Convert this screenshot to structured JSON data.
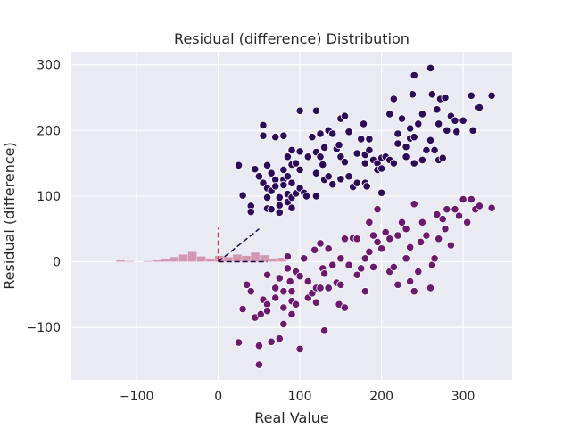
{
  "chart_data": {
    "type": "scatter",
    "title": "Residual (difference) Distribution",
    "xlabel": "Real Value",
    "ylabel": "Residual (difference)",
    "xlim": [
      -180,
      360
    ],
    "ylim": [
      -180,
      320
    ],
    "xticks": [
      -100,
      0,
      100,
      200,
      300
    ],
    "yticks": [
      -100,
      0,
      100,
      200,
      300
    ],
    "grid": true,
    "colors": {
      "background": "#eaeaf2",
      "grid": "#ffffff",
      "upper_points": "#2d0b59",
      "lower_points": "#6b1a6e",
      "histogram": "#c97c9c",
      "vline": "#c23a3a",
      "dashed_line": "#1f0a45"
    },
    "series": [
      {
        "points": [
          [
            25,
            147
          ],
          [
            30,
            101
          ],
          [
            40,
            85
          ],
          [
            40,
            76
          ],
          [
            45,
            141
          ],
          [
            50,
            130
          ],
          [
            55,
            120
          ],
          [
            55,
            208
          ],
          [
            55,
            192
          ],
          [
            60,
            147
          ],
          [
            60,
            112
          ],
          [
            60,
            98
          ],
          [
            60,
            81
          ],
          [
            65,
            135
          ],
          [
            65,
            108
          ],
          [
            65,
            80
          ],
          [
            70,
            190
          ],
          [
            70,
            125
          ],
          [
            70,
            115
          ],
          [
            75,
            98
          ],
          [
            75,
            86
          ],
          [
            75,
            75
          ],
          [
            80,
            192
          ],
          [
            80,
            140
          ],
          [
            80,
            125
          ],
          [
            80,
            117
          ],
          [
            85,
            160
          ],
          [
            85,
            130
          ],
          [
            85,
            103
          ],
          [
            85,
            91
          ],
          [
            90,
            170
          ],
          [
            90,
            148
          ],
          [
            90,
            120
          ],
          [
            90,
            98
          ],
          [
            90,
            82
          ],
          [
            95,
            150
          ],
          [
            95,
            104
          ],
          [
            100,
            230
          ],
          [
            100,
            168
          ],
          [
            100,
            140
          ],
          [
            100,
            112
          ],
          [
            105,
            105
          ],
          [
            108,
            100
          ],
          [
            110,
            160
          ],
          [
            115,
            190
          ],
          [
            120,
            230
          ],
          [
            120,
            167
          ],
          [
            120,
            135
          ],
          [
            120,
            100
          ],
          [
            125,
            195
          ],
          [
            125,
            160
          ],
          [
            128,
            148
          ],
          [
            130,
            174
          ],
          [
            130,
            125
          ],
          [
            135,
            130
          ],
          [
            135,
            200
          ],
          [
            140,
            195
          ],
          [
            140,
            118
          ],
          [
            145,
            172
          ],
          [
            148,
            178
          ],
          [
            150,
            218
          ],
          [
            150,
            160
          ],
          [
            150,
            126
          ],
          [
            155,
            222
          ],
          [
            155,
            152
          ],
          [
            160,
            198
          ],
          [
            160,
            130
          ],
          [
            165,
            114
          ],
          [
            170,
            120
          ],
          [
            170,
            165
          ],
          [
            175,
            187
          ],
          [
            178,
            210
          ],
          [
            180,
            163
          ],
          [
            180,
            150
          ],
          [
            180,
            120
          ],
          [
            182,
            115
          ],
          [
            185,
            187
          ],
          [
            185,
            170
          ],
          [
            190,
            155
          ],
          [
            195,
            150
          ],
          [
            195,
            140
          ],
          [
            200,
            158
          ],
          [
            200,
            142
          ],
          [
            200,
            105
          ],
          [
            205,
            160
          ],
          [
            210,
            225
          ],
          [
            210,
            155
          ],
          [
            215,
            150
          ],
          [
            215,
            248
          ],
          [
            220,
            180
          ],
          [
            220,
            195
          ],
          [
            225,
            218
          ],
          [
            230,
            175
          ],
          [
            230,
            160
          ],
          [
            235,
            188
          ],
          [
            235,
            203
          ],
          [
            238,
            255
          ],
          [
            240,
            284
          ],
          [
            240,
            190
          ],
          [
            240,
            150
          ],
          [
            245,
            210
          ],
          [
            250,
            225
          ],
          [
            250,
            155
          ],
          [
            255,
            170
          ],
          [
            260,
            295
          ],
          [
            260,
            185
          ],
          [
            262,
            255
          ],
          [
            265,
            170
          ],
          [
            268,
            232
          ],
          [
            270,
            210
          ],
          [
            270,
            155
          ],
          [
            272,
            248
          ],
          [
            275,
            158
          ],
          [
            278,
            250
          ],
          [
            280,
            200
          ],
          [
            285,
            222
          ],
          [
            290,
            215
          ],
          [
            292,
            198
          ],
          [
            300,
            215
          ],
          [
            310,
            253
          ],
          [
            312,
            200
          ],
          [
            318,
            235
          ],
          [
            320,
            235
          ],
          [
            335,
            253
          ]
        ]
      },
      {
        "points": [
          [
            25,
            -123
          ],
          [
            30,
            -72
          ],
          [
            35,
            -35
          ],
          [
            40,
            -45
          ],
          [
            45,
            -85
          ],
          [
            50,
            -128
          ],
          [
            50,
            -157
          ],
          [
            52,
            -80
          ],
          [
            55,
            -58
          ],
          [
            60,
            -65
          ],
          [
            60,
            -75
          ],
          [
            60,
            -20
          ],
          [
            65,
            -122
          ],
          [
            70,
            -55
          ],
          [
            70,
            -40
          ],
          [
            75,
            -117
          ],
          [
            75,
            -25
          ],
          [
            80,
            -95
          ],
          [
            80,
            -45
          ],
          [
            80,
            -70
          ],
          [
            85,
            8
          ],
          [
            85,
            -10
          ],
          [
            88,
            -30
          ],
          [
            90,
            -80
          ],
          [
            90,
            -45
          ],
          [
            90,
            -60
          ],
          [
            95,
            -65
          ],
          [
            95,
            -15
          ],
          [
            100,
            -133
          ],
          [
            100,
            -22
          ],
          [
            105,
            5
          ],
          [
            110,
            -30
          ],
          [
            110,
            -55
          ],
          [
            115,
            -48
          ],
          [
            118,
            18
          ],
          [
            120,
            -40
          ],
          [
            120,
            -62
          ],
          [
            125,
            -40
          ],
          [
            125,
            28
          ],
          [
            128,
            -10
          ],
          [
            130,
            -105
          ],
          [
            130,
            -18
          ],
          [
            135,
            -40
          ],
          [
            135,
            20
          ],
          [
            140,
            -5
          ],
          [
            145,
            -32
          ],
          [
            148,
            -65
          ],
          [
            150,
            -35
          ],
          [
            150,
            5
          ],
          [
            155,
            -70
          ],
          [
            155,
            35
          ],
          [
            160,
            -5
          ],
          [
            165,
            36
          ],
          [
            170,
            35
          ],
          [
            170,
            -20
          ],
          [
            175,
            -10
          ],
          [
            180,
            -45
          ],
          [
            180,
            5
          ],
          [
            185,
            60
          ],
          [
            185,
            15
          ],
          [
            190,
            40
          ],
          [
            190,
            -8
          ],
          [
            195,
            80
          ],
          [
            195,
            30
          ],
          [
            200,
            20
          ],
          [
            205,
            45
          ],
          [
            210,
            35
          ],
          [
            210,
            -15
          ],
          [
            215,
            -8
          ],
          [
            220,
            -35
          ],
          [
            220,
            40
          ],
          [
            225,
            60
          ],
          [
            230,
            50
          ],
          [
            230,
            5
          ],
          [
            235,
            22
          ],
          [
            235,
            -30
          ],
          [
            240,
            -45
          ],
          [
            240,
            88
          ],
          [
            245,
            -15
          ],
          [
            248,
            30
          ],
          [
            250,
            60
          ],
          [
            255,
            40
          ],
          [
            260,
            -40
          ],
          [
            262,
            -5
          ],
          [
            265,
            5
          ],
          [
            268,
            72
          ],
          [
            270,
            35
          ],
          [
            275,
            65
          ],
          [
            278,
            50
          ],
          [
            280,
            80
          ],
          [
            285,
            25
          ],
          [
            290,
            80
          ],
          [
            295,
            70
          ],
          [
            300,
            95
          ],
          [
            305,
            60
          ],
          [
            310,
            95
          ],
          [
            315,
            80
          ],
          [
            320,
            85
          ],
          [
            335,
            82
          ]
        ]
      }
    ],
    "histogram": {
      "bin_width": 11,
      "bins": [
        [
          -125,
          2
        ],
        [
          -114,
          1
        ],
        [
          -92,
          1
        ],
        [
          -81,
          2
        ],
        [
          -70,
          4
        ],
        [
          -59,
          7
        ],
        [
          -48,
          11
        ],
        [
          -37,
          15
        ],
        [
          -26,
          8
        ],
        [
          -15,
          5
        ],
        [
          -4,
          9
        ],
        [
          7,
          7
        ],
        [
          18,
          11
        ],
        [
          29,
          9
        ],
        [
          40,
          14
        ],
        [
          51,
          10
        ],
        [
          62,
          5
        ],
        [
          73,
          6
        ]
      ]
    },
    "vline": {
      "x": 0,
      "y0": 0,
      "y1": 52
    },
    "dashed_line": {
      "points": [
        [
          0,
          0
        ],
        [
          50,
          50
        ]
      ],
      "baseline": [
        [
          0,
          0
        ],
        [
          60,
          0
        ]
      ]
    }
  }
}
